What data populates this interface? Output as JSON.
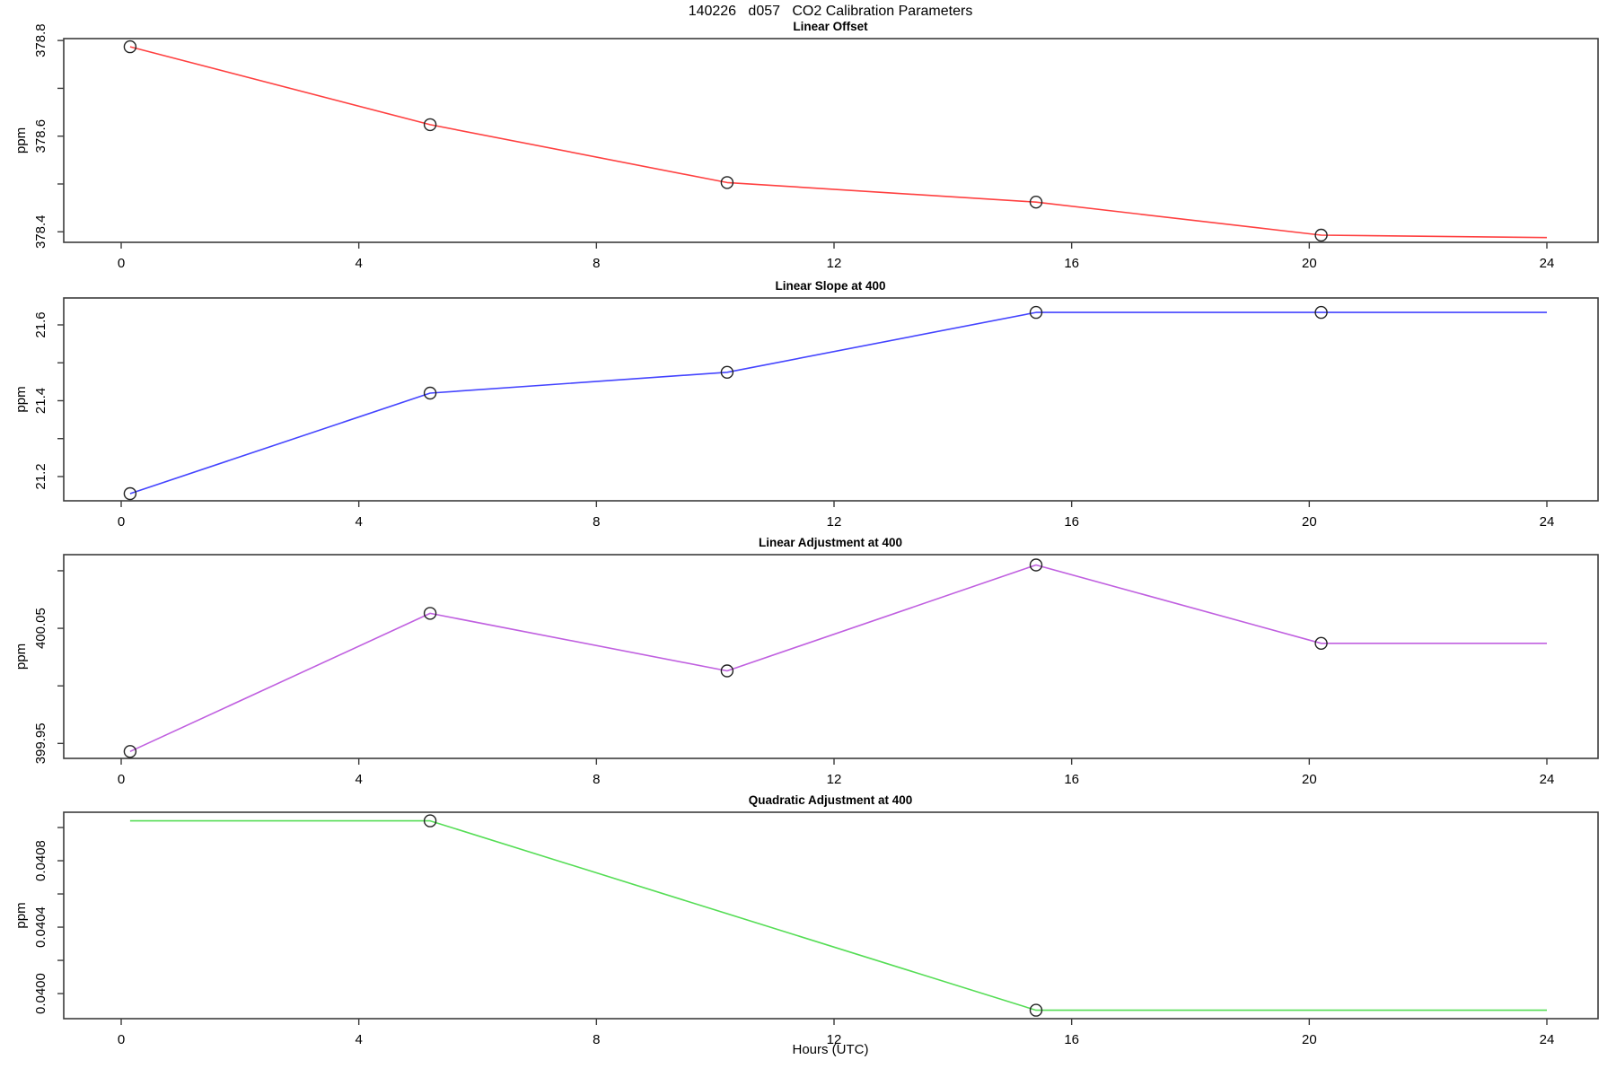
{
  "title": "140226   d057   CO2 Calibration Parameters",
  "xlabel": "Hours (UTC)",
  "chart_data": {
    "type": "line",
    "layout": "4 stacked panels sharing x axis",
    "x_axis": {
      "label": "Hours (UTC)",
      "ticks": [
        0,
        4,
        8,
        12,
        16,
        20,
        24
      ],
      "range": [
        -0.97,
        24.86
      ]
    },
    "panels": [
      {
        "title": "Linear Offset",
        "ylabel": "ppm",
        "color": "#ff4040",
        "ylim": [
          378.378,
          378.804
        ],
        "yticks": [
          {
            "v": 378.4,
            "label": "378.4"
          },
          {
            "v": 378.5,
            "label": ""
          },
          {
            "v": 378.6,
            "label": "378.6"
          },
          {
            "v": 378.7,
            "label": ""
          },
          {
            "v": 378.8,
            "label": "378.8"
          }
        ],
        "points": {
          "x": [
            0.15,
            5.2,
            10.2,
            15.4,
            20.2,
            24
          ],
          "y": [
            378.787,
            378.624,
            378.503,
            378.462,
            378.393,
            378.388
          ],
          "marker": [
            1,
            1,
            1,
            1,
            1,
            0
          ]
        }
      },
      {
        "title": "Linear Slope at 400",
        "ylabel": "ppm",
        "color": "#4444ff",
        "ylim": [
          21.136,
          21.671
        ],
        "yticks": [
          {
            "v": 21.2,
            "label": "21.2"
          },
          {
            "v": 21.3,
            "label": ""
          },
          {
            "v": 21.4,
            "label": "21.4"
          },
          {
            "v": 21.5,
            "label": ""
          },
          {
            "v": 21.6,
            "label": "21.6"
          }
        ],
        "points": {
          "x": [
            0.15,
            5.2,
            10.2,
            15.4,
            20.2,
            24
          ],
          "y": [
            21.155,
            21.42,
            21.475,
            21.633,
            21.633,
            21.633
          ],
          "marker": [
            1,
            1,
            1,
            1,
            1,
            0
          ]
        }
      },
      {
        "title": "Linear Adjustment at 400",
        "ylabel": "ppm",
        "color": "#c060e0",
        "ylim": [
          399.937,
          400.114
        ],
        "yticks": [
          {
            "v": 399.95,
            "label": "399.95"
          },
          {
            "v": 400.0,
            "label": ""
          },
          {
            "v": 400.05,
            "label": "400.05"
          },
          {
            "v": 400.1,
            "label": ""
          }
        ],
        "points": {
          "x": [
            0.15,
            5.2,
            10.2,
            15.4,
            20.2,
            24
          ],
          "y": [
            399.943,
            400.063,
            400.013,
            400.105,
            400.037,
            400.037
          ],
          "marker": [
            1,
            1,
            1,
            1,
            1,
            0
          ]
        }
      },
      {
        "title": "Quadratic Adjustment at 400",
        "ylabel": "ppm",
        "color": "#55dd55",
        "ylim": [
          0.039849,
          0.041092
        ],
        "yticks": [
          {
            "v": 0.04,
            "label": "0.0400"
          },
          {
            "v": 0.0402,
            "label": ""
          },
          {
            "v": 0.0404,
            "label": "0.0404"
          },
          {
            "v": 0.0406,
            "label": ""
          },
          {
            "v": 0.0408,
            "label": "0.0408"
          },
          {
            "v": 0.041,
            "label": ""
          }
        ],
        "points": {
          "x": [
            0.15,
            5.2,
            15.4,
            24
          ],
          "y": [
            0.04104,
            0.04104,
            0.0399,
            0.0399
          ],
          "marker": [
            0,
            1,
            1,
            0
          ]
        }
      }
    ]
  }
}
